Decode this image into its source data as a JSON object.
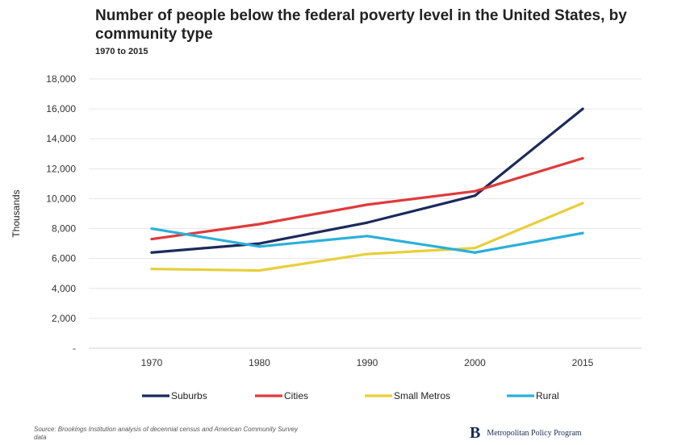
{
  "chart_data": {
    "type": "line",
    "title": "Number of people below the federal poverty level in the United States, by community type",
    "subtitle": "1970 to 2015",
    "ylabel": "Thousands",
    "xlabel": "",
    "categories": [
      "1970",
      "1980",
      "1990",
      "2000",
      "2015"
    ],
    "ylim": [
      0,
      18000
    ],
    "yticks": [
      "-",
      "2,000",
      "4,000",
      "6,000",
      "8,000",
      "10,000",
      "12,000",
      "14,000",
      "16,000",
      "18,000"
    ],
    "grid": true,
    "legend_position": "bottom",
    "series": [
      {
        "name": "Suburbs",
        "color": "#1b2a5c",
        "values": [
          6400,
          7000,
          8400,
          10200,
          16000
        ]
      },
      {
        "name": "Cities",
        "color": "#e03a3a",
        "values": [
          7300,
          8300,
          9600,
          10500,
          12700
        ]
      },
      {
        "name": "Small Metros",
        "color": "#e8cf3a",
        "values": [
          5300,
          5200,
          6300,
          6700,
          9700
        ]
      },
      {
        "name": "Rural",
        "color": "#2ab0d8",
        "values": [
          8000,
          6800,
          7500,
          6400,
          7700
        ]
      }
    ]
  },
  "footer": {
    "source": "Source: Brookings Institution analysis of decennial census and American Community Survey data",
    "logo_letter": "B",
    "logo_text": "Metropolitan Policy Program"
  }
}
